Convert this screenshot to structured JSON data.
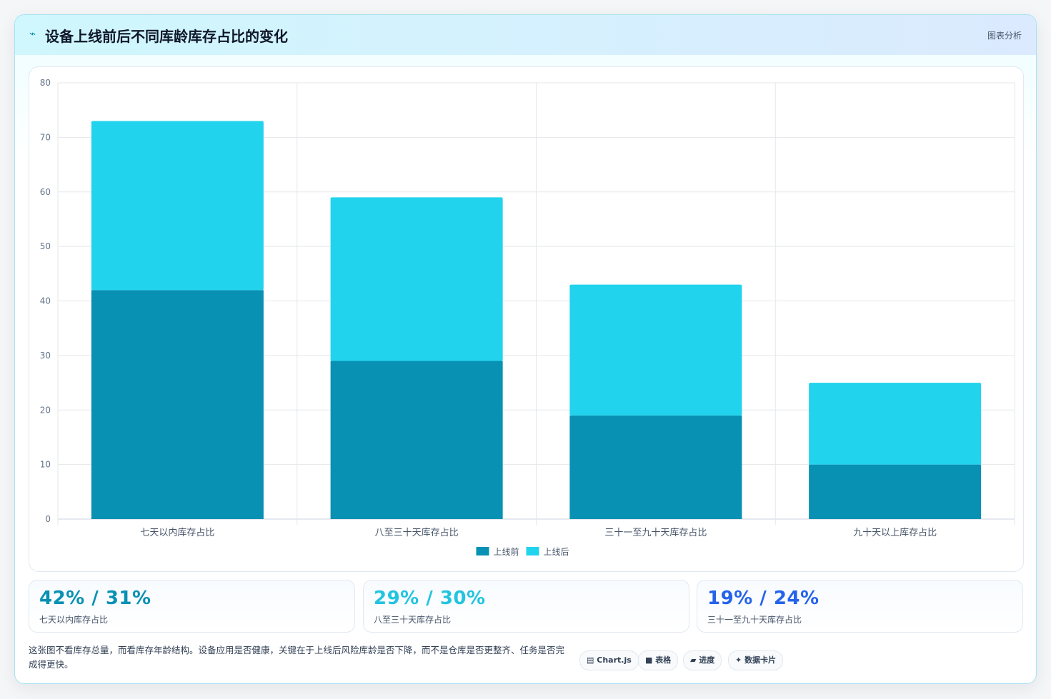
{
  "header": {
    "icon": "chart-line-icon",
    "title": "设备上线前后不同库龄库存占比的变化",
    "tag": "图表分析"
  },
  "chart_data": {
    "type": "bar",
    "stacked": true,
    "categories": [
      "七天以内库存占比",
      "八至三十天库存占比",
      "三十一至九十天库存占比",
      "九十天以上库存占比"
    ],
    "series": [
      {
        "name": "上线前",
        "values": [
          42,
          29,
          19,
          10
        ],
        "color": "#0891b2"
      },
      {
        "name": "上线后",
        "values": [
          31,
          30,
          24,
          15
        ],
        "color": "#22d3ee"
      }
    ],
    "ylim": [
      0,
      80
    ],
    "yticks": [
      0,
      10,
      20,
      30,
      40,
      50,
      60,
      70,
      80
    ],
    "grid": true,
    "legend": "bottom-center",
    "title": "",
    "xlabel": "",
    "ylabel": ""
  },
  "stats": [
    {
      "value": "42% / 31%",
      "label": "七天以内库存占比",
      "color": "#0891b2"
    },
    {
      "value": "29% / 30%",
      "label": "八至三十天库存占比",
      "color": "#22c4e0"
    },
    {
      "value": "19% / 24%",
      "label": "三十一至九十天库存占比",
      "color": "#2563eb"
    }
  ],
  "note": "这张图不看库存总量，而看库存年龄结构。设备应用是否健康，关键在于上线后风险库龄是否下降，而不是仓库是否更整齐、任务是否完成得更快。",
  "pills": [
    {
      "icon": "chart-icon",
      "glyph": "▤",
      "label": "Chart.js"
    },
    {
      "icon": "table-icon",
      "glyph": "■",
      "label": "表格"
    },
    {
      "icon": "progress-icon",
      "glyph": "▰",
      "label": "进度"
    },
    {
      "icon": "sparkle-icon",
      "glyph": "✦",
      "label": "数据卡片"
    }
  ]
}
